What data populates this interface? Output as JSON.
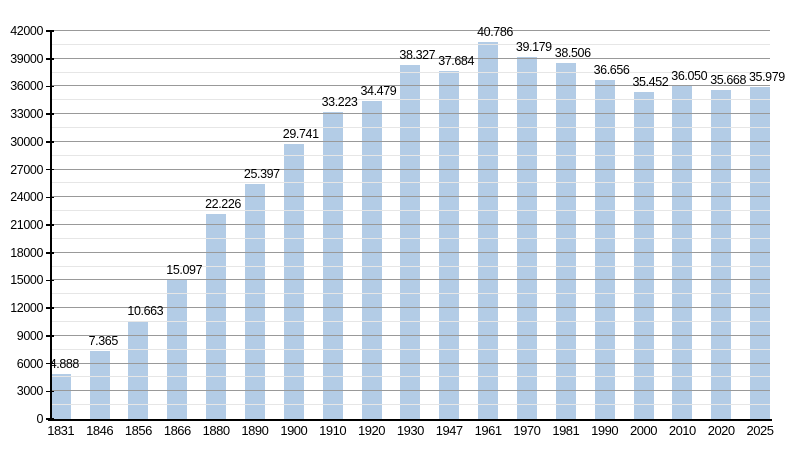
{
  "chart": {
    "background": "#ffffff"
  },
  "chart_data": {
    "type": "bar",
    "title": "",
    "xlabel": "",
    "ylabel": "",
    "categories": [
      "1831",
      "1846",
      "1856",
      "1866",
      "1880",
      "1890",
      "1900",
      "1910",
      "1920",
      "1930",
      "1947",
      "1961",
      "1970",
      "1981",
      "1990",
      "2000",
      "2010",
      "2020",
      "2025"
    ],
    "values": [
      4888,
      7365,
      10663,
      15097,
      22226,
      25397,
      29741,
      33223,
      34479,
      38327,
      37684,
      40786,
      39179,
      38506,
      36656,
      35452,
      36050,
      35668,
      35979
    ],
    "value_labels": [
      "4.888",
      "7.365",
      "10.663",
      "15.097",
      "22.226",
      "25.397",
      "29.741",
      "33.223",
      "34.479",
      "38.327",
      "37.684",
      "40.786",
      "39.179",
      "38.506",
      "36.656",
      "35.452",
      "36.050",
      "35.668",
      "35.979"
    ],
    "ylim": [
      0,
      42000
    ],
    "y_major_step": 3000,
    "y_minor_step": 1500,
    "y_tick_labels": [
      "0",
      "3000",
      "6000",
      "9000",
      "12000",
      "15000",
      "18000",
      "21000",
      "24000",
      "27000",
      "30000",
      "33000",
      "36000",
      "39000",
      "42000"
    ],
    "grid": true,
    "legend": "none",
    "colors": {
      "bar": "#b3cce6",
      "major_grid": "#999999",
      "minor_grid": "#e6e6e6",
      "axis": "#000000",
      "text": "#000000"
    }
  }
}
